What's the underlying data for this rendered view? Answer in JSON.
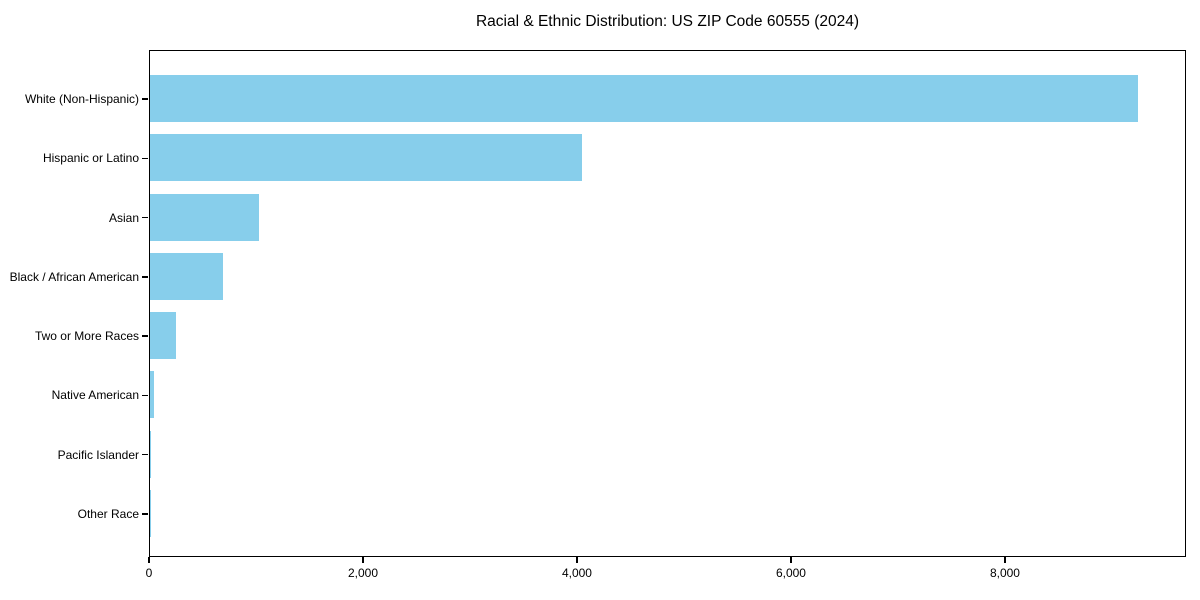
{
  "colors": {
    "bar": "#87CEEB",
    "axis": "#000000",
    "background": "#FFFFFF"
  },
  "chart_data": {
    "type": "bar",
    "orientation": "horizontal",
    "title": "Racial & Ethnic Distribution: US ZIP Code 60555 (2024)",
    "categories": [
      "White (Non-Hispanic)",
      "Hispanic or Latino",
      "Asian",
      "Black / African American",
      "Two or More Races",
      "Native American",
      "Pacific Islander",
      "Other Race"
    ],
    "values": [
      9230,
      4040,
      1020,
      680,
      240,
      40,
      8,
      5
    ],
    "xlabel": "",
    "ylabel": "",
    "xlim": [
      0,
      9692
    ],
    "xticks": [
      0,
      2000,
      4000,
      6000,
      8000
    ],
    "xtick_labels": [
      "0",
      "2,000",
      "4,000",
      "6,000",
      "8,000"
    ],
    "grid": false,
    "legend": null,
    "bar_color": "#87CEEB",
    "sorted": "descending"
  }
}
